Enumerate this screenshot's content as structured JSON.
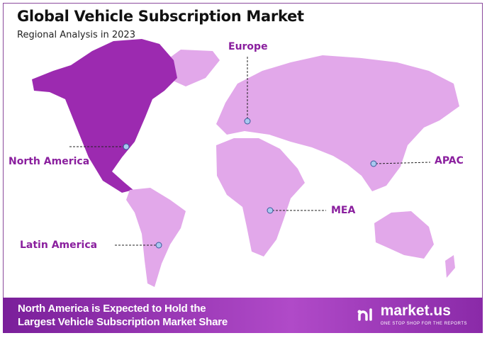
{
  "header": {
    "title": "Global Vehicle Subscription Market",
    "subtitle": "Regional Analysis in 2023"
  },
  "regions": [
    {
      "name": "Europe",
      "highlighted": false
    },
    {
      "name": "North America",
      "highlighted": true
    },
    {
      "name": "APAC",
      "highlighted": false
    },
    {
      "name": "MEA",
      "highlighted": false
    },
    {
      "name": "Latin America",
      "highlighted": false
    }
  ],
  "colors": {
    "highlight": "#9c2ab0",
    "base": "#e2a8ea",
    "label": "#8a1f9e",
    "marker": "#a9c8f0"
  },
  "banner": {
    "line1": "North America is Expected to Hold the",
    "line2": "Largest Vehicle Subscription Market Share"
  },
  "logo": {
    "name": "market.us",
    "tagline": "ONE STOP SHOP FOR THE REPORTS"
  }
}
